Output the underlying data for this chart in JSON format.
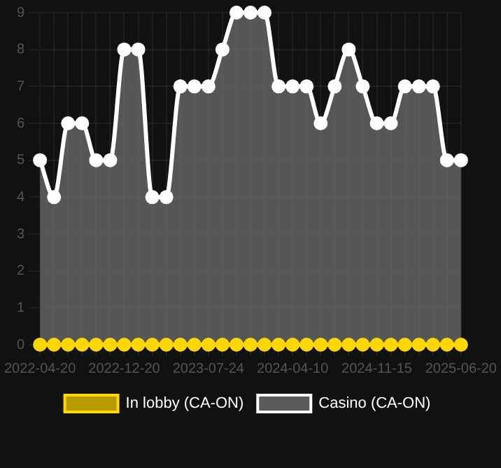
{
  "chart_data": {
    "type": "area",
    "categories": [
      "2022-04-20",
      null,
      null,
      null,
      null,
      null,
      "2022-12-20",
      null,
      null,
      null,
      null,
      null,
      "2023-07-24",
      null,
      null,
      null,
      null,
      null,
      "2024-04-10",
      null,
      null,
      null,
      null,
      null,
      "2024-11-15",
      null,
      null,
      null,
      null,
      null,
      "2025-06-20"
    ],
    "series": [
      {
        "name": "In lobby (CA-ON)",
        "type": "line",
        "color": "#ffd700",
        "values": [
          0,
          0,
          0,
          0,
          0,
          0,
          0,
          0,
          0,
          0,
          0,
          0,
          0,
          0,
          0,
          0,
          0,
          0,
          0,
          0,
          0,
          0,
          0,
          0,
          0,
          0,
          0,
          0,
          0,
          0,
          0
        ]
      },
      {
        "name": "Casino (CA-ON)",
        "color": "#ffffff",
        "values": [
          5,
          4,
          6,
          6,
          5,
          5,
          8,
          8,
          4,
          4,
          7,
          7,
          7,
          8,
          9,
          9,
          9,
          7,
          7,
          7,
          6,
          7,
          8,
          7,
          6,
          6,
          7,
          7,
          7,
          5,
          5
        ]
      }
    ],
    "ylim": [
      0,
      9
    ],
    "yticks": [
      0,
      1,
      2,
      3,
      4,
      5,
      6,
      7,
      8,
      9
    ],
    "grid": true,
    "legend": "bottom",
    "marker": "circle"
  }
}
